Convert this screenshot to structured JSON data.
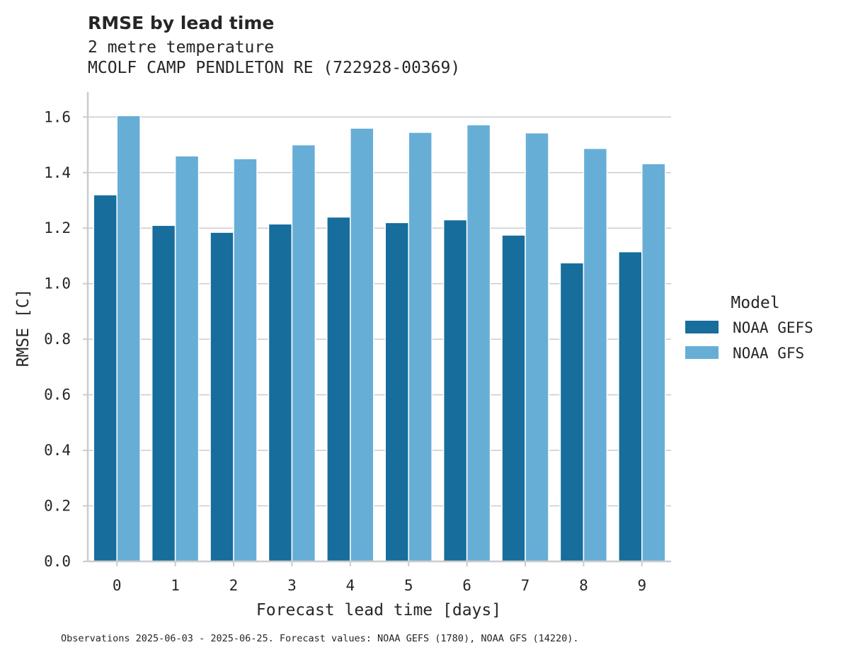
{
  "chart_data": {
    "type": "bar",
    "title": "RMSE by lead time",
    "subtitle_lines": [
      "2 metre temperature",
      "MCOLF CAMP PENDLETON RE (722928-00369)"
    ],
    "xlabel": "Forecast lead time [days]",
    "ylabel": "RMSE [C]",
    "categories": [
      "0",
      "1",
      "2",
      "3",
      "4",
      "5",
      "6",
      "7",
      "8",
      "9"
    ],
    "ylim": [
      0,
      1.69
    ],
    "yticks": [
      "0.0",
      "0.2",
      "0.4",
      "0.6",
      "0.8",
      "1.0",
      "1.2",
      "1.4",
      "1.6"
    ],
    "grid": "horizontal",
    "legend": {
      "title": "Model",
      "placement": "center-right"
    },
    "series": [
      {
        "name": "NOAA GEFS",
        "color": "#176d9c",
        "values": [
          1.32,
          1.21,
          1.185,
          1.215,
          1.24,
          1.22,
          1.23,
          1.175,
          1.075,
          1.115
        ]
      },
      {
        "name": "NOAA GFS",
        "color": "#67aed7",
        "values": [
          1.605,
          1.46,
          1.45,
          1.5,
          1.56,
          1.545,
          1.572,
          1.543,
          1.487,
          1.432
        ]
      }
    ],
    "footnote": "Observations 2025-06-03 - 2025-06-25. Forecast values: NOAA GEFS (1780), NOAA GFS (14220)."
  }
}
